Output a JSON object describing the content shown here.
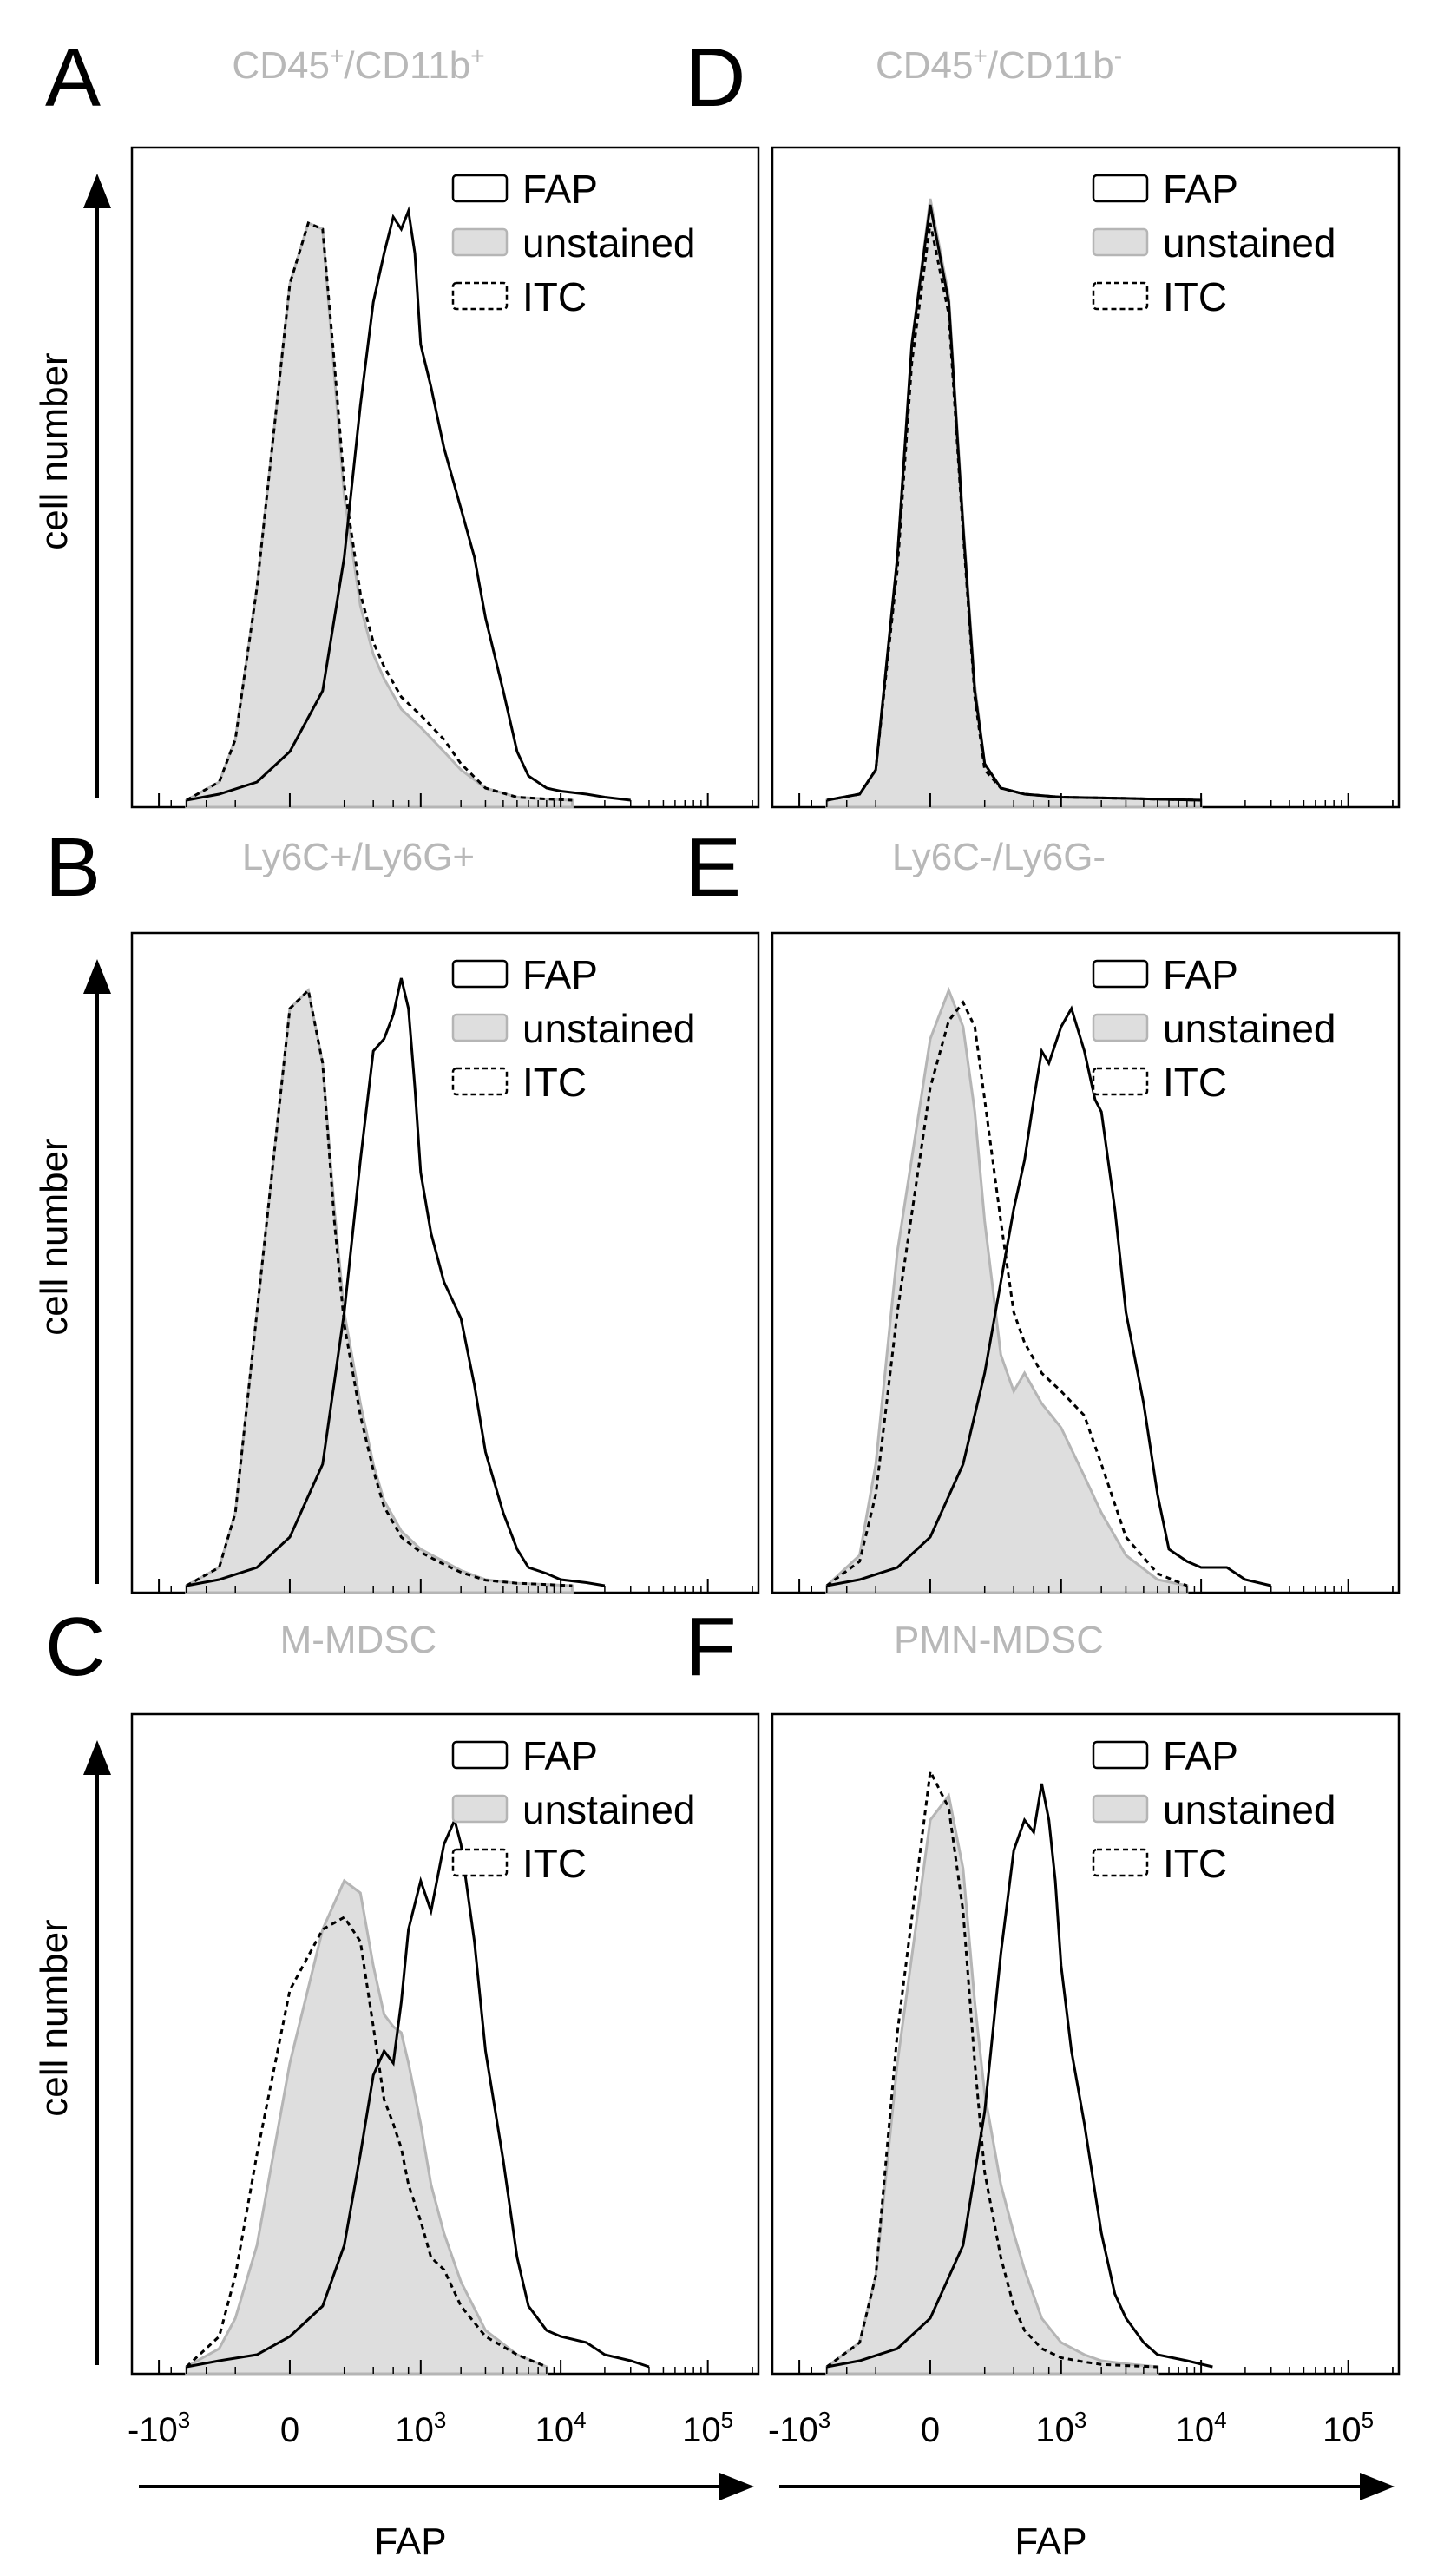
{
  "chart_data": [
    {
      "panel": "A",
      "type": "area",
      "title": "CD45+/CD11b+",
      "title_main": "CD45",
      "title_sup1": "+",
      "title_mid": "/CD11b",
      "title_sup2": "+",
      "ylabel": "cell number",
      "xlabel": "",
      "legend": [
        "FAP",
        "unstained",
        "ITC"
      ],
      "series": [
        {
          "name": "FAP",
          "style": "solid",
          "x": [
            -600,
            -300,
            -100,
            0,
            100,
            200,
            300,
            400,
            500,
            600,
            700,
            800,
            900,
            1000,
            1200,
            1500,
            2000,
            2500,
            3000,
            4000,
            5000,
            6000,
            8000,
            10000,
            15000,
            20000,
            30000
          ],
          "y": [
            0,
            0.01,
            0.03,
            0.08,
            0.18,
            0.4,
            0.65,
            0.82,
            0.9,
            0.96,
            0.94,
            0.97,
            0.9,
            0.75,
            0.68,
            0.58,
            0.48,
            0.4,
            0.3,
            0.18,
            0.08,
            0.04,
            0.02,
            0.015,
            0.01,
            0.005,
            0
          ]
        },
        {
          "name": "unstained",
          "style": "filled",
          "x": [
            -600,
            -300,
            -200,
            -100,
            0,
            50,
            100,
            150,
            200,
            300,
            400,
            500,
            700,
            1000,
            1500,
            2000,
            3000,
            5000,
            8000,
            12000
          ],
          "y": [
            0,
            0.03,
            0.1,
            0.35,
            0.85,
            0.95,
            0.94,
            0.7,
            0.5,
            0.32,
            0.24,
            0.2,
            0.15,
            0.12,
            0.08,
            0.05,
            0.02,
            0.005,
            0.002,
            0
          ]
        },
        {
          "name": "ITC",
          "style": "dashed",
          "x": [
            -600,
            -300,
            -200,
            -100,
            0,
            50,
            100,
            150,
            200,
            300,
            400,
            500,
            700,
            1000,
            1500,
            2000,
            3000,
            5000,
            8000,
            12000
          ],
          "y": [
            0,
            0.03,
            0.1,
            0.35,
            0.85,
            0.95,
            0.94,
            0.72,
            0.52,
            0.34,
            0.26,
            0.22,
            0.17,
            0.14,
            0.1,
            0.06,
            0.02,
            0.005,
            0.002,
            0
          ]
        }
      ]
    },
    {
      "panel": "B",
      "type": "area",
      "title": "Ly6C+/Ly6G+",
      "ylabel": "cell number",
      "xlabel": "",
      "legend": [
        "FAP",
        "unstained",
        "ITC"
      ],
      "series": [
        {
          "name": "FAP",
          "style": "solid",
          "x": [
            -600,
            -300,
            -100,
            0,
            100,
            200,
            300,
            400,
            500,
            600,
            700,
            800,
            900,
            1000,
            1200,
            1500,
            2000,
            2500,
            3000,
            4000,
            5000,
            6000,
            8000,
            10000,
            15000,
            20000
          ],
          "y": [
            0,
            0.01,
            0.03,
            0.08,
            0.2,
            0.45,
            0.7,
            0.88,
            0.9,
            0.94,
            1.0,
            0.95,
            0.82,
            0.68,
            0.58,
            0.5,
            0.44,
            0.33,
            0.22,
            0.12,
            0.06,
            0.03,
            0.02,
            0.01,
            0.005,
            0
          ]
        },
        {
          "name": "unstained",
          "style": "filled",
          "x": [
            -600,
            -300,
            -200,
            -100,
            0,
            50,
            100,
            150,
            200,
            300,
            400,
            500,
            700,
            1000,
            1500,
            2000,
            3000,
            5000,
            8000,
            12000
          ],
          "y": [
            0,
            0.03,
            0.12,
            0.45,
            0.95,
            0.98,
            0.86,
            0.62,
            0.45,
            0.3,
            0.2,
            0.14,
            0.09,
            0.06,
            0.04,
            0.025,
            0.01,
            0.004,
            0.002,
            0
          ]
        },
        {
          "name": "ITC",
          "style": "dashed",
          "x": [
            -600,
            -300,
            -200,
            -100,
            0,
            50,
            100,
            150,
            200,
            300,
            400,
            500,
            700,
            1000,
            1500,
            2000,
            3000,
            5000,
            8000,
            12000
          ],
          "y": [
            0,
            0.03,
            0.12,
            0.45,
            0.95,
            0.98,
            0.86,
            0.6,
            0.43,
            0.28,
            0.19,
            0.13,
            0.08,
            0.055,
            0.035,
            0.022,
            0.009,
            0.004,
            0.002,
            0
          ]
        }
      ]
    },
    {
      "panel": "C",
      "type": "area",
      "title": "M-MDSC",
      "ylabel": "cell number",
      "xlabel": "FAP",
      "legend": [
        "FAP",
        "unstained",
        "ITC"
      ],
      "series": [
        {
          "name": "FAP",
          "style": "solid",
          "x": [
            -600,
            -300,
            -100,
            0,
            100,
            200,
            300,
            400,
            500,
            600,
            700,
            800,
            1000,
            1200,
            1500,
            1800,
            2000,
            2500,
            3000,
            4000,
            5000,
            6000,
            8000,
            10000,
            15000,
            20000,
            30000,
            40000
          ],
          "y": [
            0,
            0.01,
            0.02,
            0.05,
            0.1,
            0.2,
            0.35,
            0.48,
            0.52,
            0.5,
            0.6,
            0.72,
            0.8,
            0.75,
            0.86,
            0.9,
            0.86,
            0.7,
            0.52,
            0.34,
            0.18,
            0.1,
            0.06,
            0.05,
            0.04,
            0.02,
            0.01,
            0
          ]
        },
        {
          "name": "unstained",
          "style": "filled",
          "x": [
            -600,
            -300,
            -200,
            -100,
            0,
            100,
            200,
            300,
            400,
            500,
            600,
            700,
            800,
            1000,
            1200,
            1500,
            2000,
            3000,
            5000,
            8000
          ],
          "y": [
            0,
            0.03,
            0.08,
            0.2,
            0.5,
            0.72,
            0.8,
            0.78,
            0.66,
            0.58,
            0.56,
            0.55,
            0.5,
            0.4,
            0.3,
            0.22,
            0.14,
            0.06,
            0.02,
            0
          ]
        },
        {
          "name": "ITC",
          "style": "dashed",
          "x": [
            -600,
            -300,
            -200,
            -100,
            0,
            100,
            200,
            300,
            400,
            500,
            600,
            700,
            800,
            1000,
            1200,
            1500,
            2000,
            3000,
            5000,
            8000
          ],
          "y": [
            0,
            0.05,
            0.15,
            0.35,
            0.62,
            0.72,
            0.74,
            0.7,
            0.56,
            0.44,
            0.4,
            0.36,
            0.3,
            0.24,
            0.18,
            0.16,
            0.1,
            0.05,
            0.02,
            0
          ]
        }
      ]
    },
    {
      "panel": "D",
      "type": "area",
      "title": "CD45+/CD11b-",
      "title_main": "CD45",
      "title_sup1": "+",
      "title_mid": "/CD11b",
      "title_sup2": "-",
      "ylabel": "",
      "xlabel": "",
      "legend": [
        "FAP",
        "unstained",
        "ITC"
      ],
      "series": [
        {
          "name": "FAP",
          "style": "solid",
          "x": [
            -600,
            -300,
            -200,
            -100,
            -50,
            0,
            50,
            100,
            150,
            200,
            300,
            500,
            1000,
            3000,
            10000
          ],
          "y": [
            0,
            0.01,
            0.05,
            0.4,
            0.75,
            0.98,
            0.82,
            0.45,
            0.18,
            0.06,
            0.02,
            0.01,
            0.005,
            0.003,
            0
          ]
        },
        {
          "name": "unstained",
          "style": "filled",
          "x": [
            -600,
            -300,
            -200,
            -100,
            -50,
            0,
            50,
            100,
            150,
            200,
            300,
            500,
            1000,
            3000,
            10000
          ],
          "y": [
            0,
            0.01,
            0.05,
            0.4,
            0.75,
            0.99,
            0.83,
            0.46,
            0.19,
            0.06,
            0.02,
            0.01,
            0.005,
            0.003,
            0
          ]
        },
        {
          "name": "ITC",
          "style": "dashed",
          "x": [
            -600,
            -300,
            -200,
            -100,
            -50,
            0,
            50,
            100,
            150,
            200,
            300,
            500,
            1000,
            3000,
            10000
          ],
          "y": [
            0,
            0.01,
            0.05,
            0.38,
            0.72,
            0.95,
            0.8,
            0.44,
            0.17,
            0.05,
            0.02,
            0.01,
            0.005,
            0.003,
            0
          ]
        }
      ]
    },
    {
      "panel": "E",
      "type": "area",
      "title": "Ly6C-/Ly6G-",
      "ylabel": "",
      "xlabel": "",
      "legend": [
        "FAP",
        "unstained",
        "ITC"
      ],
      "series": [
        {
          "name": "FAP",
          "style": "solid",
          "x": [
            -600,
            -300,
            -100,
            0,
            100,
            200,
            300,
            400,
            500,
            600,
            700,
            800,
            1000,
            1200,
            1500,
            1800,
            2000,
            2500,
            3000,
            4000,
            5000,
            6000,
            8000,
            10000,
            15000,
            20000,
            30000
          ],
          "y": [
            0,
            0.01,
            0.03,
            0.08,
            0.2,
            0.35,
            0.5,
            0.62,
            0.7,
            0.8,
            0.88,
            0.86,
            0.92,
            0.95,
            0.88,
            0.8,
            0.78,
            0.62,
            0.45,
            0.3,
            0.15,
            0.06,
            0.04,
            0.03,
            0.03,
            0.01,
            0
          ]
        },
        {
          "name": "unstained",
          "style": "filled",
          "x": [
            -600,
            -300,
            -200,
            -100,
            0,
            50,
            100,
            150,
            200,
            300,
            400,
            500,
            700,
            1000,
            1500,
            2000,
            3000,
            5000,
            8000
          ],
          "y": [
            0,
            0.05,
            0.2,
            0.55,
            0.9,
            0.98,
            0.92,
            0.78,
            0.6,
            0.38,
            0.32,
            0.35,
            0.3,
            0.26,
            0.18,
            0.12,
            0.05,
            0.01,
            0
          ]
        },
        {
          "name": "ITC",
          "style": "dashed",
          "x": [
            -600,
            -300,
            -200,
            -100,
            0,
            50,
            100,
            150,
            200,
            300,
            400,
            500,
            700,
            1000,
            1500,
            2000,
            3000,
            5000,
            8000
          ],
          "y": [
            0,
            0.04,
            0.15,
            0.45,
            0.82,
            0.93,
            0.96,
            0.92,
            0.8,
            0.6,
            0.45,
            0.4,
            0.35,
            0.32,
            0.28,
            0.2,
            0.08,
            0.02,
            0
          ]
        }
      ]
    },
    {
      "panel": "F",
      "type": "area",
      "title": "PMN-MDSC",
      "ylabel": "",
      "xlabel": "FAP",
      "legend": [
        "FAP",
        "unstained",
        "ITC"
      ],
      "series": [
        {
          "name": "FAP",
          "style": "solid",
          "x": [
            -600,
            -300,
            -100,
            0,
            100,
            200,
            300,
            400,
            500,
            600,
            700,
            800,
            900,
            1000,
            1200,
            1500,
            2000,
            2500,
            3000,
            4000,
            5000,
            8000,
            12000
          ],
          "y": [
            0,
            0.01,
            0.03,
            0.08,
            0.2,
            0.42,
            0.68,
            0.85,
            0.9,
            0.88,
            0.96,
            0.9,
            0.8,
            0.66,
            0.52,
            0.4,
            0.22,
            0.12,
            0.08,
            0.04,
            0.02,
            0.01,
            0
          ]
        },
        {
          "name": "unstained",
          "style": "filled",
          "x": [
            -600,
            -300,
            -200,
            -100,
            0,
            50,
            100,
            150,
            200,
            300,
            400,
            500,
            700,
            1000,
            1500,
            2000,
            3000,
            5000
          ],
          "y": [
            0,
            0.04,
            0.15,
            0.5,
            0.9,
            0.94,
            0.82,
            0.6,
            0.45,
            0.3,
            0.22,
            0.16,
            0.08,
            0.04,
            0.02,
            0.01,
            0.005,
            0
          ]
        },
        {
          "name": "ITC",
          "style": "dashed",
          "x": [
            -600,
            -300,
            -200,
            -100,
            0,
            50,
            100,
            150,
            200,
            300,
            400,
            500,
            700,
            1000,
            1500,
            2000,
            3000,
            5000
          ],
          "y": [
            0,
            0.04,
            0.15,
            0.55,
            0.98,
            0.92,
            0.75,
            0.5,
            0.32,
            0.18,
            0.1,
            0.06,
            0.03,
            0.015,
            0.008,
            0.004,
            0.002,
            0
          ]
        }
      ]
    }
  ],
  "axis": {
    "ticks": [
      "-10",
      "0",
      "10",
      "10",
      "10"
    ],
    "tick_exps": [
      "3",
      "",
      "3",
      "4",
      "5"
    ]
  }
}
